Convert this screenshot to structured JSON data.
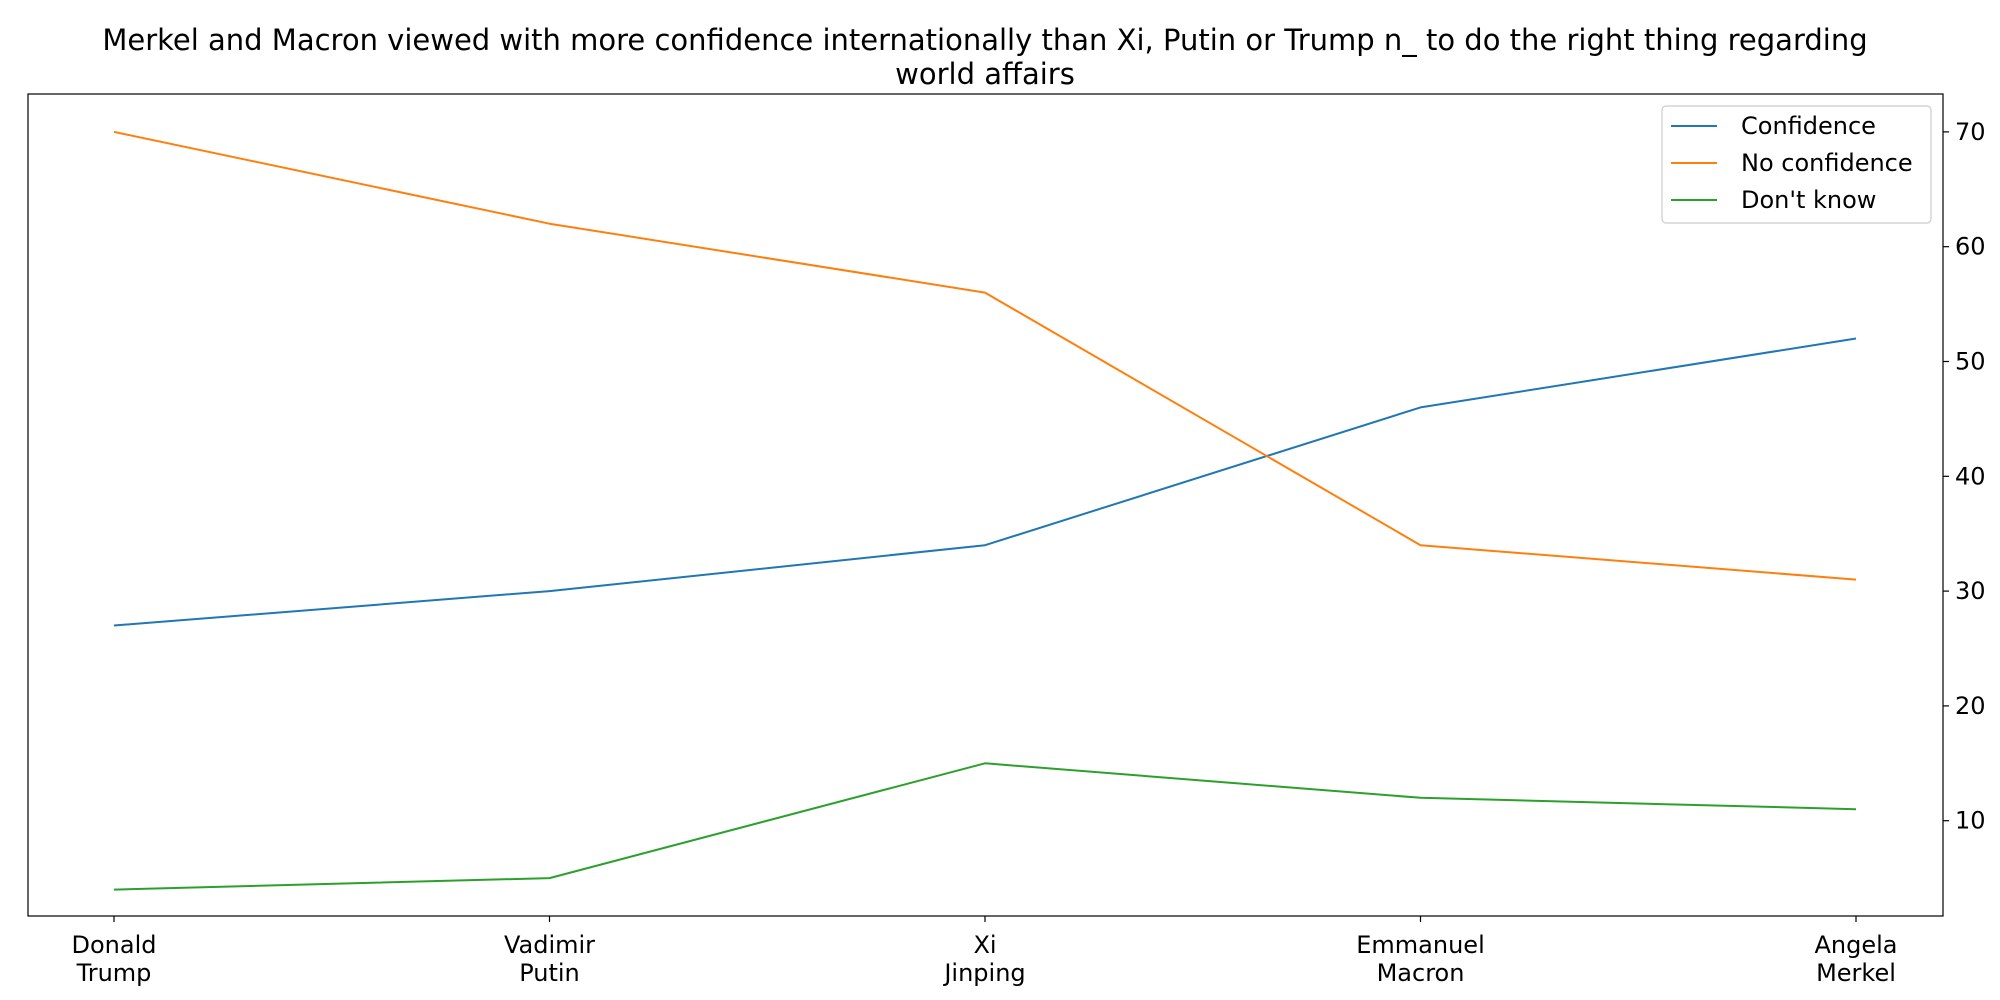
{
  "chart_data": {
    "type": "line",
    "title": "Merkel and Macron viewed with more confidence internationally than Xi, Putin or Trump n_ to do the right thing regarding world affairs",
    "title_lines": [
      "Merkel and Macron viewed with more confidence internationally than Xi, Putin or Trump n_ to do the right thing regarding",
      "world affairs"
    ],
    "xlabel": "",
    "ylabel": "",
    "categories": [
      [
        "Donald",
        "Trump"
      ],
      [
        "Vadimir",
        "Putin"
      ],
      [
        "Xi",
        "Jinping"
      ],
      [
        "Emmanuel",
        "Macron"
      ],
      [
        "Angela",
        "Merkel"
      ]
    ],
    "series": [
      {
        "name": "Confidence",
        "color": "#1f77b4",
        "values": [
          27,
          30,
          34,
          46,
          52
        ]
      },
      {
        "name": "No confidence",
        "color": "#ff7f0e",
        "values": [
          70,
          62,
          56,
          34,
          31
        ]
      },
      {
        "name": "Don't know",
        "color": "#2ca02c",
        "values": [
          4,
          5,
          15,
          12,
          11
        ]
      }
    ],
    "ylim": [
      1.7,
      73.3
    ],
    "yticks": [
      10,
      20,
      30,
      40,
      50,
      60,
      70
    ],
    "y_axis_side": "right",
    "grid": false,
    "legend_position": "top-right"
  }
}
